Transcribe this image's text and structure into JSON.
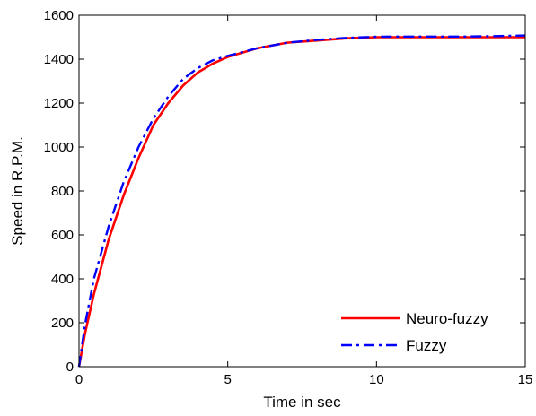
{
  "chart_data": {
    "type": "line",
    "title": "",
    "xlabel": "Time in sec",
    "ylabel": "Speed in R.P.M.",
    "xlim": [
      0,
      15
    ],
    "ylim": [
      0,
      1600
    ],
    "xticks": [
      0,
      5,
      10,
      15
    ],
    "yticks": [
      0,
      200,
      400,
      600,
      800,
      1000,
      1200,
      1400,
      1600
    ],
    "xtick_labels": [
      "0",
      "5",
      "10",
      "15"
    ],
    "ytick_labels": [
      "0",
      "200",
      "400",
      "600",
      "800",
      "1000",
      "1200",
      "1400",
      "1600"
    ],
    "grid": false,
    "legend_position": "bottom-right",
    "series": [
      {
        "name": "Neuro-fuzzy",
        "color": "#ff0000",
        "style": "solid",
        "x": [
          0,
          0.2,
          0.5,
          1,
          1.5,
          2,
          2.5,
          3,
          3.5,
          4,
          4.5,
          5,
          6,
          7,
          8,
          9,
          10,
          11,
          12,
          13,
          14,
          15
        ],
        "y": [
          0,
          150,
          330,
          580,
          780,
          950,
          1100,
          1200,
          1280,
          1340,
          1380,
          1410,
          1450,
          1475,
          1485,
          1495,
          1500,
          1500,
          1500,
          1500,
          1500,
          1500
        ]
      },
      {
        "name": "Fuzzy",
        "color": "#0000ff",
        "style": "dashdot",
        "x": [
          0,
          0.2,
          0.5,
          1,
          1.5,
          2,
          2.5,
          3,
          3.5,
          4,
          4.5,
          5,
          6,
          7,
          8,
          9,
          10,
          11,
          12,
          13,
          14,
          15
        ],
        "y": [
          0,
          190,
          400,
          640,
          840,
          1000,
          1130,
          1230,
          1310,
          1360,
          1395,
          1415,
          1450,
          1475,
          1488,
          1497,
          1502,
          1503,
          1503,
          1503,
          1505,
          1508
        ]
      }
    ]
  }
}
